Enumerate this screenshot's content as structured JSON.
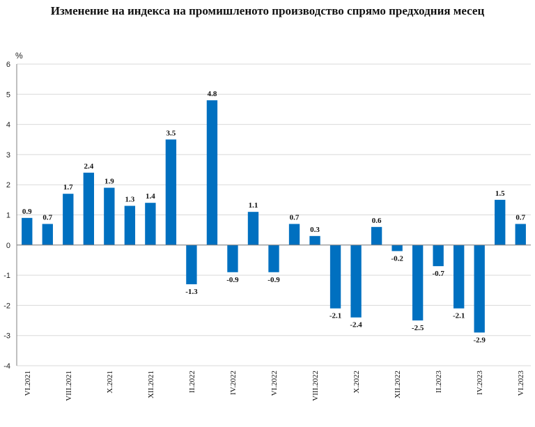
{
  "title": "Изменение на индекса на промишленото производство спрямо предходния месец",
  "unit": "%",
  "colors": {
    "bar": "#0070C0",
    "grid": "#D9D9D9",
    "axis": "#808080"
  },
  "chart_data": {
    "type": "bar",
    "title": "Изменение на индекса на промишленото производство спрямо предходния месец",
    "xlabel": "",
    "ylabel": "%",
    "ylim": [
      -4,
      6
    ],
    "yticks": [
      -4,
      -3,
      -2,
      -1,
      0,
      1,
      2,
      3,
      4,
      5,
      6
    ],
    "grid": true,
    "legend": "none",
    "categories": [
      "VI.2021",
      "VII.2021",
      "VIII.2021",
      "IX.2021",
      "X.2021",
      "XI.2021",
      "XII.2021",
      "I.2022",
      "II.2022",
      "III.2022",
      "IV.2022",
      "V.2022",
      "VI.2022",
      "VII.2022",
      "VIII.2022",
      "IX.2022",
      "X.2022",
      "XI.2022",
      "XII.2022",
      "I.2023",
      "II.2023",
      "III.2023",
      "IV.2023",
      "V.2023",
      "VI.2023"
    ],
    "visible_tick_labels": [
      "VI.2021",
      "VIII.2021",
      "X.2021",
      "XII.2021",
      "II.2022",
      "IV.2022",
      "VI.2022",
      "VIII.2022",
      "X.2022",
      "XII.2022",
      "II.2023",
      "IV.2023",
      "VI.2023"
    ],
    "values": [
      0.9,
      0.7,
      1.7,
      2.4,
      1.9,
      1.3,
      1.4,
      3.5,
      -1.3,
      4.8,
      -0.9,
      1.1,
      -0.9,
      0.7,
      0.3,
      -2.1,
      -2.4,
      0.6,
      -0.2,
      -2.5,
      -0.7,
      -2.1,
      -2.9,
      1.5,
      0.7
    ]
  }
}
